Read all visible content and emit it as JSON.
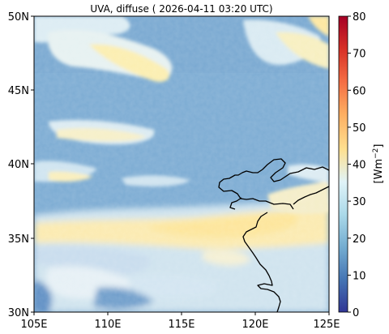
{
  "title": "UVA, diffuse ( 2026-04-11 03:20 UTC)",
  "lat_ticks": [
    "50N",
    "45N",
    "40N",
    "35N",
    "30N"
  ],
  "lon_ticks": [
    "105E",
    "110E",
    "115E",
    "120E",
    "125E"
  ],
  "colorbar": {
    "label": "[Wm",
    "label_exp": "−2",
    "label_close": "]",
    "ticks": [
      "80",
      "70",
      "60",
      "50",
      "40",
      "30",
      "20",
      "10",
      "0"
    ],
    "vmin": 0,
    "vmax": 80,
    "colors": [
      "#313695",
      "#4575b4",
      "#74add1",
      "#abd9e9",
      "#e0f3f8",
      "#fee090",
      "#fdae61",
      "#f46d43",
      "#d73027",
      "#a50026"
    ]
  },
  "map": {
    "extent_lon": [
      105,
      125
    ],
    "extent_lat": [
      30,
      50
    ],
    "background_color": "#7aa9d1"
  }
}
